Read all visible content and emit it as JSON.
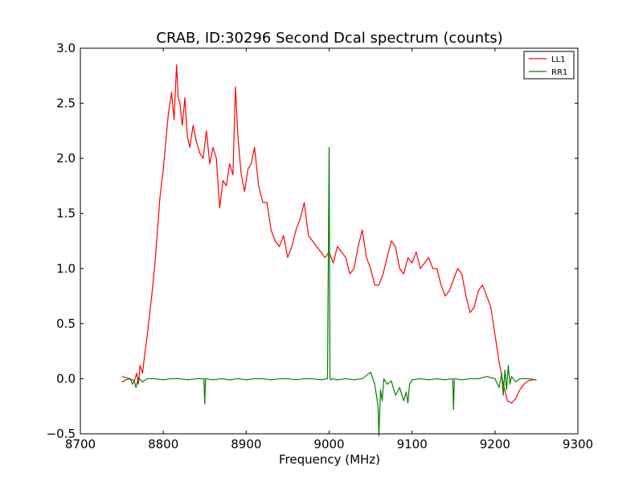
{
  "chart_data": {
    "type": "line",
    "title": "CRAB, ID:30296 Second Dcal spectrum (counts)",
    "xlabel": "Frequency (MHz)",
    "ylabel": "",
    "xlim": [
      8700,
      9300
    ],
    "ylim": [
      -0.5,
      3.0
    ],
    "xticks": [
      8700,
      8800,
      8900,
      9000,
      9100,
      9200,
      9300
    ],
    "yticks": [
      -0.5,
      0.0,
      0.5,
      1.0,
      1.5,
      2.0,
      2.5,
      3.0
    ],
    "xtick_labels": [
      "8700",
      "8800",
      "8900",
      "9000",
      "9100",
      "9200",
      "9300"
    ],
    "ytick_labels": [
      "−0.5",
      "0.0",
      "0.5",
      "1.0",
      "1.5",
      "2.0",
      "2.5",
      "3.0"
    ],
    "grid": false,
    "legend_position": "top-right",
    "series": [
      {
        "name": "LL1",
        "color": "#ff0000",
        "x": [
          8750,
          8760,
          8765,
          8768,
          8770,
          8772,
          8775,
          8778,
          8780,
          8783,
          8786,
          8790,
          8793,
          8796,
          8800,
          8803,
          8806,
          8810,
          8813,
          8816,
          8818,
          8820,
          8823,
          8826,
          8829,
          8832,
          8836,
          8840,
          8844,
          8848,
          8852,
          8856,
          8860,
          8864,
          8868,
          8872,
          8876,
          8880,
          8884,
          8887,
          8890,
          8894,
          8898,
          8902,
          8906,
          8910,
          8915,
          8920,
          8925,
          8930,
          8935,
          8940,
          8945,
          8950,
          8955,
          8960,
          8965,
          8970,
          8975,
          8980,
          8985,
          8990,
          8995,
          9000,
          9005,
          9010,
          9015,
          9020,
          9025,
          9030,
          9035,
          9040,
          9045,
          9050,
          9055,
          9060,
          9065,
          9070,
          9075,
          9080,
          9085,
          9090,
          9095,
          9100,
          9105,
          9110,
          9115,
          9120,
          9125,
          9130,
          9135,
          9140,
          9145,
          9150,
          9155,
          9160,
          9165,
          9170,
          9175,
          9180,
          9185,
          9190,
          9195,
          9200,
          9205,
          9210,
          9215,
          9220,
          9225,
          9230,
          9235,
          9240,
          9245,
          9250
        ],
        "y": [
          0.02,
          0.0,
          -0.02,
          0.05,
          -0.05,
          0.12,
          0.05,
          0.25,
          0.35,
          0.55,
          0.75,
          1.05,
          1.35,
          1.65,
          1.9,
          2.15,
          2.4,
          2.6,
          2.35,
          2.85,
          2.55,
          2.5,
          2.3,
          2.55,
          2.2,
          2.1,
          2.3,
          2.15,
          2.05,
          2.0,
          2.25,
          1.95,
          2.1,
          2.0,
          1.55,
          1.8,
          1.75,
          1.95,
          1.85,
          2.65,
          2.2,
          1.85,
          1.7,
          1.9,
          1.95,
          2.1,
          1.75,
          1.6,
          1.6,
          1.35,
          1.25,
          1.2,
          1.3,
          1.1,
          1.2,
          1.35,
          1.45,
          1.6,
          1.3,
          1.25,
          1.2,
          1.15,
          1.1,
          1.15,
          1.05,
          1.2,
          1.15,
          1.1,
          0.95,
          1.0,
          1.2,
          1.35,
          1.1,
          1.0,
          0.85,
          0.85,
          0.95,
          1.1,
          1.25,
          1.2,
          1.0,
          0.95,
          1.1,
          1.05,
          1.15,
          1.0,
          1.05,
          1.1,
          1.0,
          1.0,
          0.85,
          0.75,
          0.8,
          0.9,
          1.0,
          0.95,
          0.75,
          0.6,
          0.65,
          0.8,
          0.85,
          0.75,
          0.65,
          0.4,
          0.15,
          -0.05,
          -0.2,
          -0.22,
          -0.18,
          -0.1,
          -0.05,
          -0.02,
          -0.01,
          -0.01
        ]
      },
      {
        "name": "RR1",
        "color": "#008000",
        "x": [
          8750,
          8755,
          8760,
          8763,
          8765,
          8767,
          8770,
          8775,
          8780,
          8790,
          8800,
          8810,
          8820,
          8830,
          8840,
          8849,
          8850,
          8851,
          8860,
          8870,
          8880,
          8890,
          8900,
          8910,
          8920,
          8930,
          8940,
          8950,
          8960,
          8970,
          8980,
          8990,
          8998,
          9000,
          9001,
          9002,
          9004,
          9010,
          9020,
          9030,
          9040,
          9050,
          9055,
          9057,
          9059,
          9060,
          9061,
          9062,
          9064,
          9066,
          9070,
          9075,
          9080,
          9085,
          9090,
          9093,
          9095,
          9097,
          9100,
          9110,
          9120,
          9130,
          9140,
          9149,
          9150,
          9151,
          9160,
          9170,
          9180,
          9190,
          9200,
          9205,
          9208,
          9210,
          9212,
          9214,
          9216,
          9218,
          9220,
          9225,
          9230,
          9240,
          9250
        ],
        "y": [
          -0.03,
          -0.01,
          0.0,
          -0.05,
          -0.02,
          -0.08,
          0.01,
          -0.03,
          0.0,
          0.0,
          -0.01,
          0.0,
          0.0,
          -0.01,
          0.0,
          0.0,
          -0.23,
          0.0,
          -0.01,
          0.0,
          -0.01,
          0.0,
          -0.01,
          0.0,
          0.0,
          -0.01,
          0.0,
          0.0,
          -0.01,
          0.0,
          0.0,
          -0.01,
          0.0,
          2.1,
          0.0,
          -0.01,
          0.0,
          -0.01,
          0.0,
          -0.01,
          0.0,
          0.06,
          -0.05,
          -0.15,
          -0.25,
          -0.52,
          -0.3,
          -0.1,
          -0.2,
          0.0,
          -0.05,
          -0.02,
          -0.15,
          -0.08,
          -0.2,
          -0.12,
          -0.22,
          -0.05,
          -0.01,
          0.0,
          -0.01,
          0.0,
          -0.01,
          0.0,
          -0.28,
          0.0,
          -0.01,
          0.0,
          0.0,
          0.02,
          0.0,
          -0.08,
          0.05,
          -0.15,
          0.08,
          -0.1,
          0.12,
          -0.05,
          0.02,
          -0.03,
          0.0,
          0.0,
          -0.01
        ]
      }
    ]
  }
}
